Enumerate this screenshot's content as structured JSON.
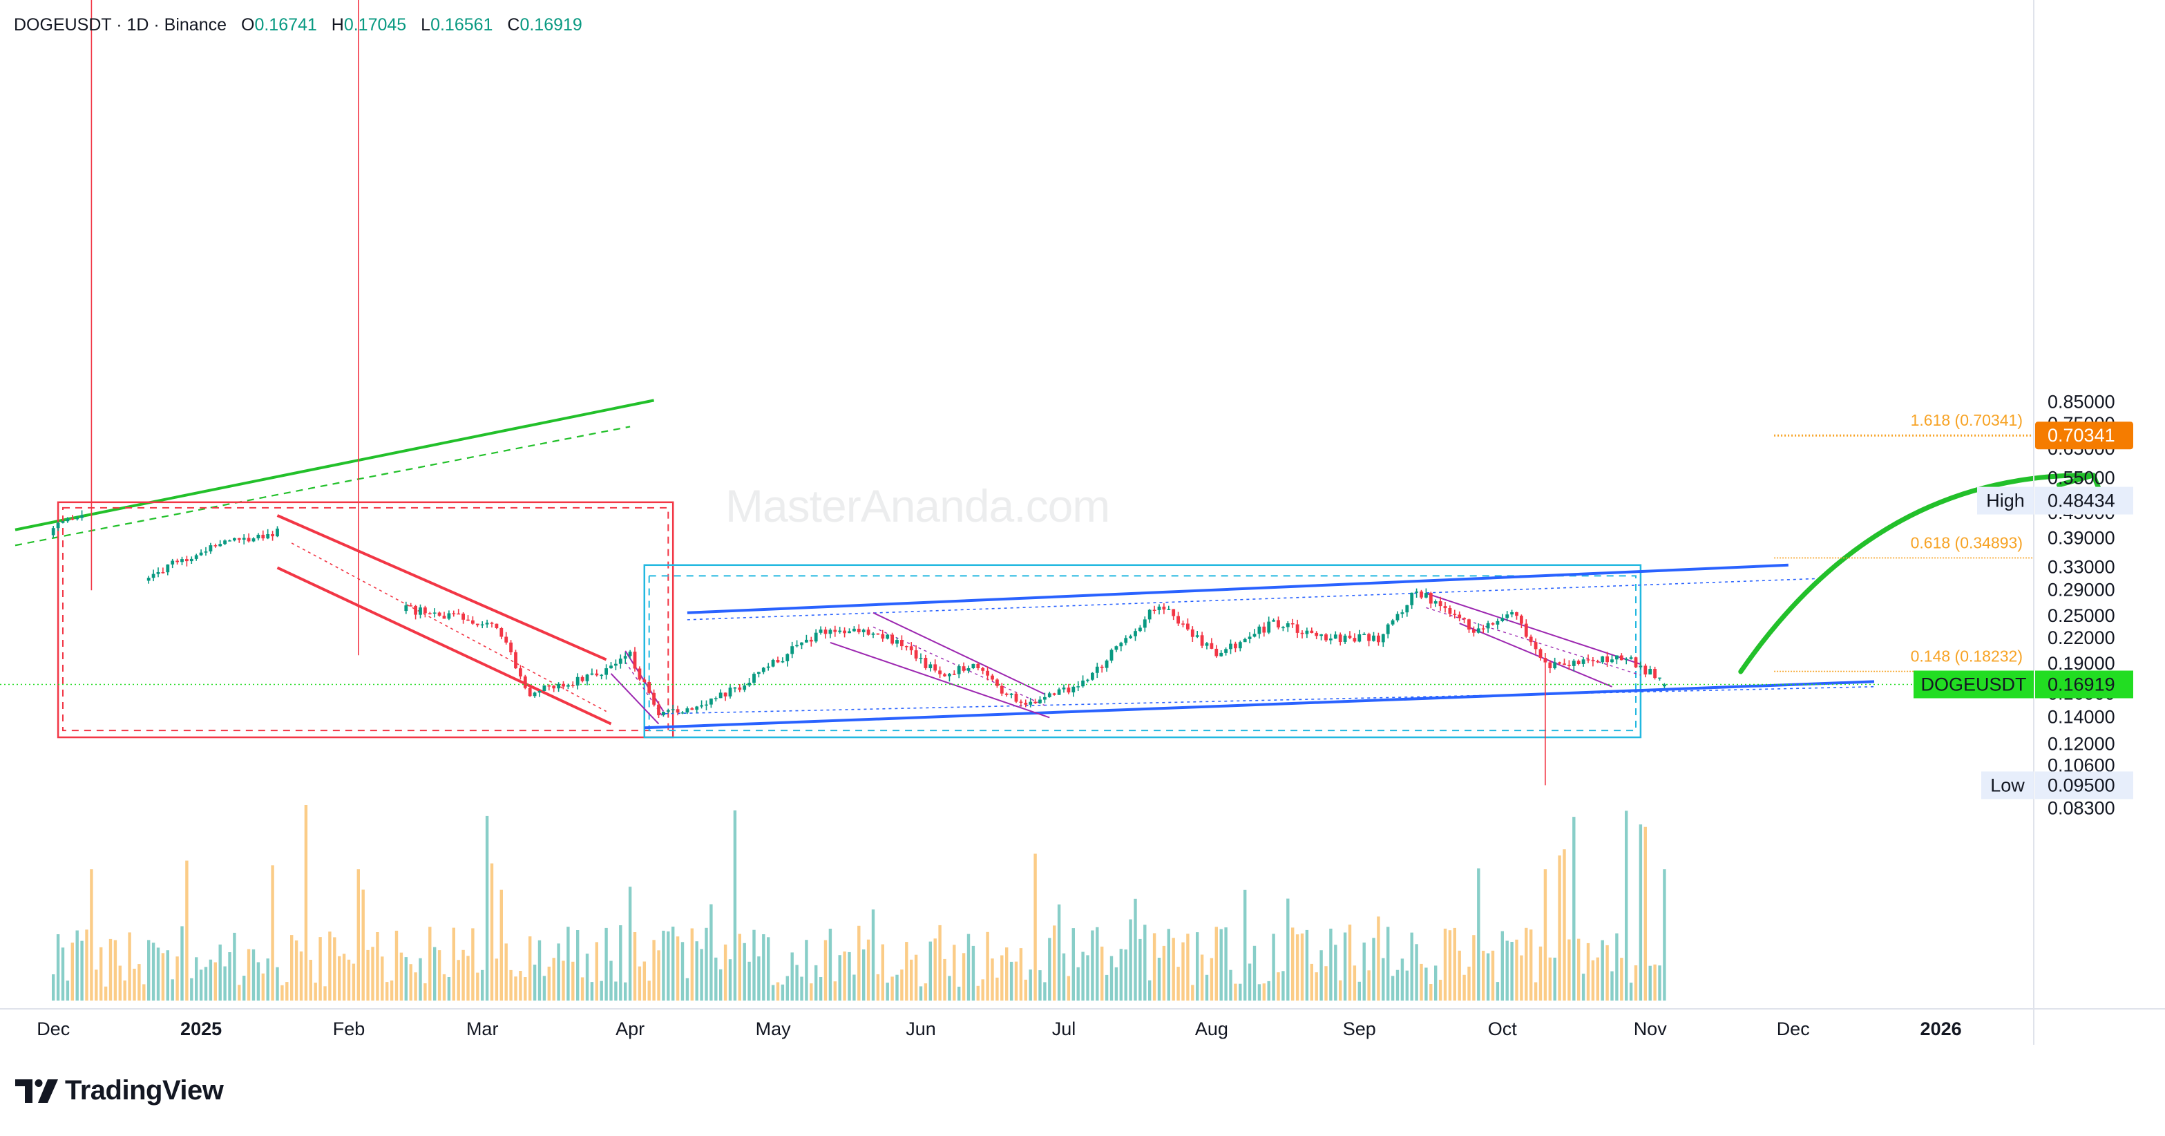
{
  "header": {
    "symbol": "DOGEUSDT",
    "interval": "1D",
    "exchange": "Binance",
    "open_label": "O",
    "open": "0.16741",
    "high_label": "H",
    "high": "0.17045",
    "low_label": "L",
    "low": "0.16561",
    "close_label": "C",
    "close": "0.16919"
  },
  "price_tags": {
    "last": {
      "label": "DOGEUSDT",
      "value": "0.16919"
    },
    "high": {
      "label": "High",
      "value": "0.48434"
    },
    "low": {
      "label": "Low",
      "value": "0.09500"
    },
    "target": {
      "value": "0.70341"
    }
  },
  "fib_labels": [
    "1.618 (0.70341)",
    "0.618 (0.34893)",
    "0.148 (0.18232)"
  ],
  "watermark": "MasterAnanda.com",
  "brand": {
    "name": "TradingView"
  },
  "colors": {
    "up": "#089981",
    "down": "#f23645",
    "vol_up": "#26a69a",
    "vol_down": "#f7a325",
    "channel_blue": "#2962ff",
    "red_channel": "#f23645",
    "green_arrow": "#22c02a",
    "purple": "#9c27b0",
    "fib_orange": "#f7a325",
    "last_price_bg": "#22dd22",
    "cyan_box": "#22b8e0"
  },
  "chart_data": {
    "type": "candlestick",
    "title": "DOGEUSDT · 1D · Binance",
    "x_range": [
      "2024-11-23",
      "2026-02-15"
    ],
    "x_tick_labels": [
      "Dec",
      "2025",
      "Feb",
      "Mar",
      "Apr",
      "May",
      "Jun",
      "Jul",
      "Aug",
      "Sep",
      "Oct",
      "Nov",
      "Dec",
      "2026"
    ],
    "y_scale": "log",
    "y_range": [
      0.075,
      0.86
    ],
    "y_tick_labels": [
      "0.85000",
      "0.75000",
      "0.65000",
      "0.55000",
      "0.45000",
      "0.39000",
      "0.33000",
      "0.29000",
      "0.25000",
      "0.22000",
      "0.19000",
      "0.16000",
      "0.14000",
      "0.12000",
      "0.10600",
      "0.08300"
    ],
    "grid": false,
    "legend": "none",
    "key_points": [
      {
        "date": "2024-12-01",
        "close": 0.41
      },
      {
        "date": "2024-12-08",
        "close": 0.45
      },
      {
        "date": "2024-12-09",
        "low": 0.29
      },
      {
        "date": "2024-12-20",
        "close": 0.31
      },
      {
        "date": "2025-01-05",
        "close": 0.38
      },
      {
        "date": "2025-01-18",
        "close": 0.41
      },
      {
        "date": "2025-02-03",
        "low": 0.2
      },
      {
        "date": "2025-02-12",
        "close": 0.26
      },
      {
        "date": "2025-03-04",
        "close": 0.24
      },
      {
        "date": "2025-03-11",
        "close": 0.16
      },
      {
        "date": "2025-03-25",
        "close": 0.18
      },
      {
        "date": "2025-04-01",
        "close": 0.2
      },
      {
        "date": "2025-04-07",
        "close": 0.14
      },
      {
        "date": "2025-04-21",
        "close": 0.16
      },
      {
        "date": "2025-04-28",
        "close": 0.18
      },
      {
        "date": "2025-05-11",
        "close": 0.23
      },
      {
        "date": "2025-05-23",
        "close": 0.23
      },
      {
        "date": "2025-06-05",
        "close": 0.18
      },
      {
        "date": "2025-06-12",
        "close": 0.19
      },
      {
        "date": "2025-06-22",
        "close": 0.15
      },
      {
        "date": "2025-07-05",
        "close": 0.17
      },
      {
        "date": "2025-07-21",
        "close": 0.27
      },
      {
        "date": "2025-08-02",
        "close": 0.2
      },
      {
        "date": "2025-08-14",
        "close": 0.24
      },
      {
        "date": "2025-08-25",
        "close": 0.22
      },
      {
        "date": "2025-09-05",
        "close": 0.22
      },
      {
        "date": "2025-09-13",
        "close": 0.29
      },
      {
        "date": "2025-09-25",
        "close": 0.23
      },
      {
        "date": "2025-10-03",
        "close": 0.26
      },
      {
        "date": "2025-10-10",
        "close": 0.19,
        "low": 0.095
      },
      {
        "date": "2025-10-16",
        "close": 0.19
      },
      {
        "date": "2025-10-27",
        "close": 0.2
      },
      {
        "date": "2025-11-04",
        "open": 0.16741,
        "high": 0.17045,
        "low": 0.16561,
        "close": 0.16919
      }
    ],
    "period_high": 0.48434,
    "period_low": 0.095,
    "last_price": 0.16919,
    "fibonacci_levels": [
      {
        "ratio": 1.618,
        "price": 0.70341
      },
      {
        "ratio": 0.618,
        "price": 0.34893
      },
      {
        "ratio": 0.148,
        "price": 0.18232
      }
    ]
  }
}
